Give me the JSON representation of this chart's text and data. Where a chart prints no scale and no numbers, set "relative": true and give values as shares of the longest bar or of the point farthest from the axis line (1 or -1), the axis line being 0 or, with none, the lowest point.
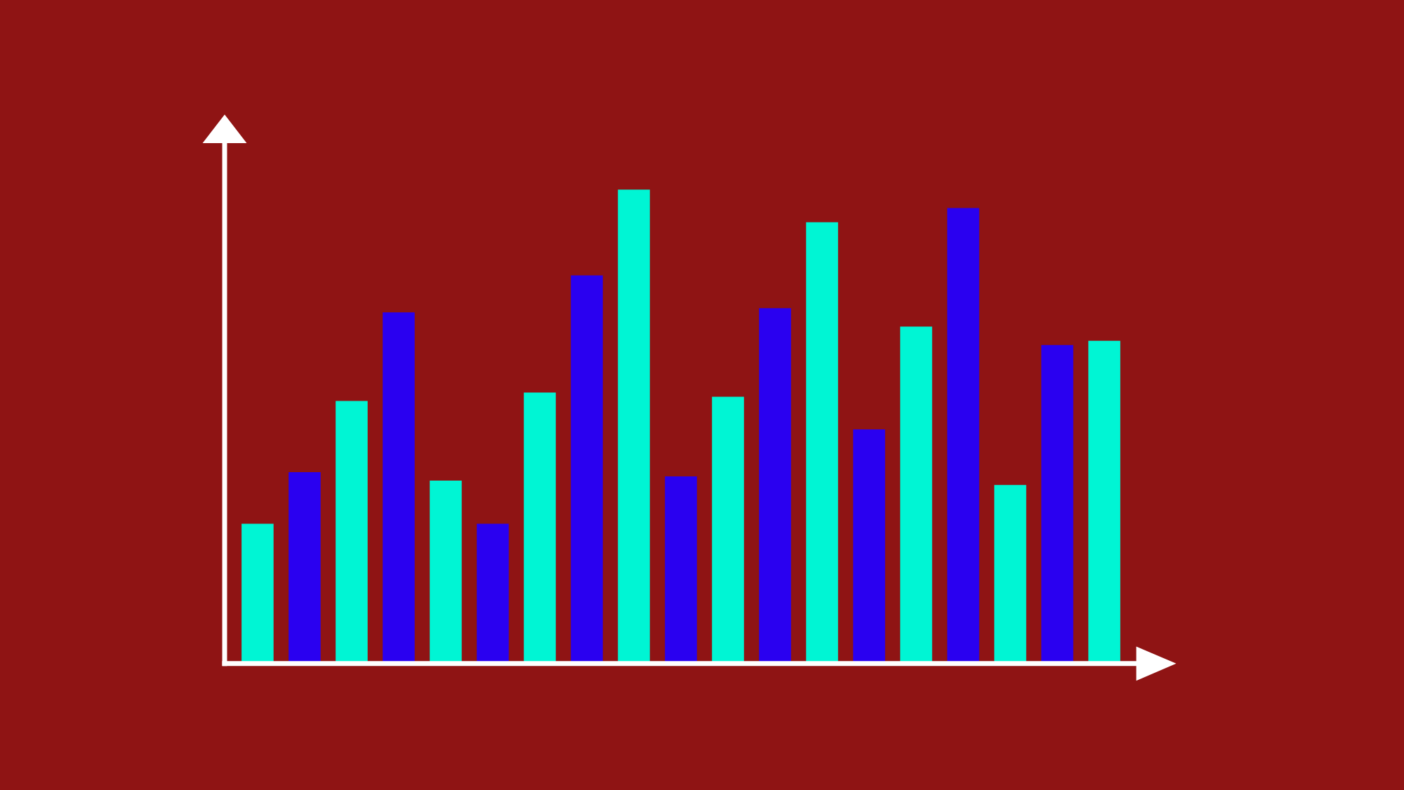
{
  "chart_data": {
    "type": "bar",
    "relative": true,
    "categories": [
      null,
      null,
      null,
      null,
      null,
      null,
      null,
      null,
      null,
      null,
      null,
      null,
      null,
      null,
      null,
      null,
      null,
      null,
      null
    ],
    "values": [
      0.295,
      0.404,
      0.554,
      0.741,
      0.386,
      0.295,
      0.572,
      0.819,
      1.0,
      0.395,
      0.563,
      0.75,
      0.931,
      0.494,
      0.711,
      0.961,
      0.377,
      0.672,
      0.681
    ],
    "colors": [
      "#00f5d4",
      "#2a00f0",
      "#00f5d4",
      "#2a00f0",
      "#00f5d4",
      "#2a00f0",
      "#00f5d4",
      "#2a00f0",
      "#00f5d4",
      "#2a00f0",
      "#00f5d4",
      "#2a00f0",
      "#00f5d4",
      "#2a00f0",
      "#00f5d4",
      "#2a00f0",
      "#00f5d4",
      "#2a00f0",
      "#00f5d4"
    ]
  }
}
